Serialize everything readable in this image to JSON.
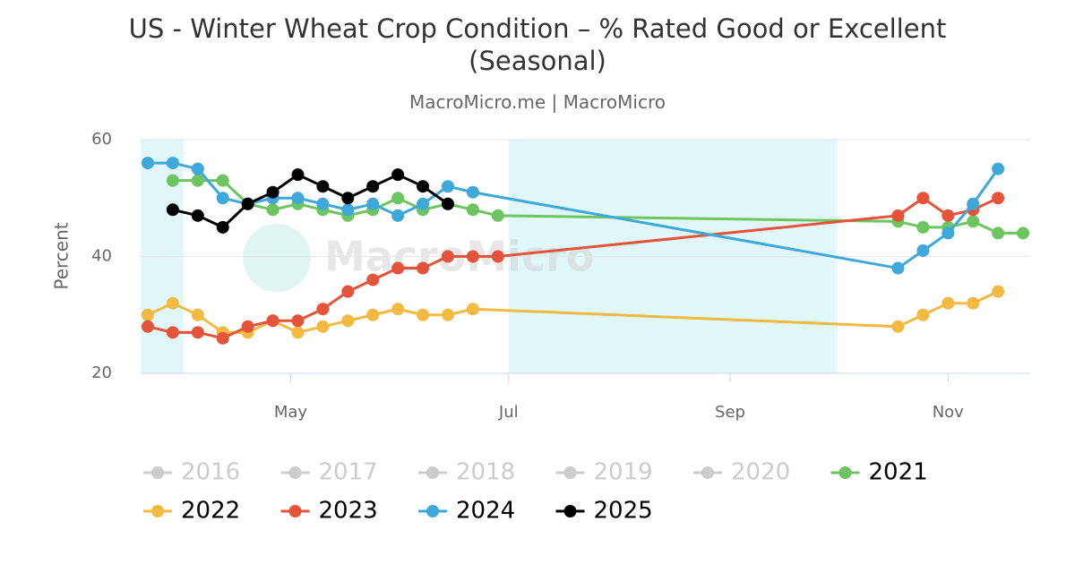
{
  "chart_data": {
    "type": "line",
    "title": "US - Winter Wheat Crop Condition – % Rated Good or Excellent (Seasonal)",
    "subtitle": "MacroMicro.me | MacroMicro",
    "watermark": "MacroMicro",
    "y_label": "Percent",
    "xlim": [
      79,
      328
    ],
    "xticks": [
      {
        "value": 121,
        "label": "May"
      },
      {
        "value": 182,
        "label": "Jul"
      },
      {
        "value": 244,
        "label": "Sep"
      },
      {
        "value": 305,
        "label": "Nov"
      }
    ],
    "ylim": [
      20,
      60
    ],
    "yticks": [
      20,
      40,
      60
    ],
    "grid": true,
    "shaded_ranges": [
      [
        79,
        91
      ],
      [
        182,
        274
      ]
    ],
    "shade_color": "#e0f8f9",
    "series": [
      {
        "name": "2016",
        "color": "#cccccc",
        "hidden": true,
        "x": [],
        "values": []
      },
      {
        "name": "2017",
        "color": "#cccccc",
        "hidden": true,
        "x": [],
        "values": []
      },
      {
        "name": "2018",
        "color": "#cccccc",
        "hidden": true,
        "x": [],
        "values": []
      },
      {
        "name": "2019",
        "color": "#cccccc",
        "hidden": true,
        "x": [],
        "values": []
      },
      {
        "name": "2020",
        "color": "#cccccc",
        "hidden": true,
        "x": [],
        "values": []
      },
      {
        "name": "2021",
        "color": "#6cc55f",
        "hidden": false,
        "x": [
          88,
          95,
          102,
          109,
          116,
          123,
          130,
          137,
          144,
          151,
          158,
          165,
          172,
          179,
          291,
          298,
          305,
          312,
          319,
          326
        ],
        "values": [
          53,
          53,
          53,
          49,
          48,
          49,
          48,
          47,
          48,
          50,
          48,
          49,
          48,
          47,
          46,
          45,
          45,
          46,
          44,
          44
        ]
      },
      {
        "name": "2022",
        "color": "#f3b941",
        "hidden": false,
        "x": [
          81,
          88,
          95,
          102,
          109,
          116,
          123,
          130,
          137,
          144,
          151,
          158,
          165,
          172,
          291,
          298,
          305,
          312,
          319
        ],
        "values": [
          30,
          32,
          30,
          27,
          27,
          29,
          27,
          28,
          29,
          30,
          31,
          30,
          30,
          31,
          28,
          30,
          32,
          32,
          34
        ]
      },
      {
        "name": "2023",
        "color": "#e4533a",
        "hidden": false,
        "x": [
          81,
          88,
          95,
          102,
          109,
          116,
          123,
          130,
          137,
          144,
          151,
          158,
          165,
          172,
          179,
          291,
          298,
          305,
          312,
          319
        ],
        "values": [
          28,
          27,
          27,
          26,
          28,
          29,
          29,
          31,
          34,
          36,
          38,
          38,
          40,
          40,
          40,
          47,
          50,
          47,
          48,
          50
        ]
      },
      {
        "name": "2024",
        "color": "#3ea8da",
        "hidden": false,
        "x": [
          81,
          88,
          95,
          102,
          109,
          116,
          123,
          130,
          137,
          144,
          151,
          158,
          165,
          172,
          291,
          298,
          305,
          312,
          319
        ],
        "values": [
          56,
          56,
          55,
          50,
          49,
          50,
          50,
          49,
          48,
          49,
          47,
          49,
          52,
          51,
          38,
          41,
          44,
          49,
          55
        ]
      },
      {
        "name": "2025",
        "color": "#000000",
        "hidden": false,
        "x": [
          88,
          95,
          102,
          109,
          116,
          123,
          130,
          137,
          144,
          151,
          158,
          165
        ],
        "values": [
          48,
          47,
          45,
          49,
          51,
          54,
          52,
          50,
          52,
          54,
          52,
          49
        ]
      }
    ]
  }
}
